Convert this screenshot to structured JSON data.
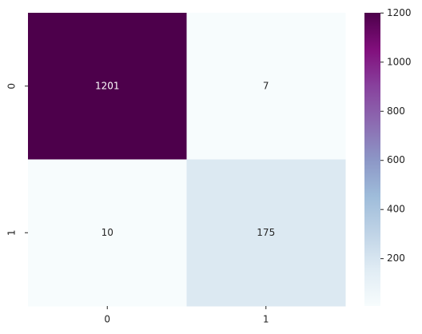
{
  "chart_data": {
    "type": "heatmap",
    "x_categories": [
      "0",
      "1"
    ],
    "y_categories": [
      "0",
      "1"
    ],
    "values": [
      [
        1201,
        7
      ],
      [
        10,
        175
      ]
    ],
    "colorscale": [
      "#f7fcfd",
      "#e0ecf4",
      "#bfd3e6",
      "#9ebcda",
      "#8c96c6",
      "#8c6bb1",
      "#88419d",
      "#810f7c",
      "#4d004b"
    ],
    "clim": [
      7,
      1201
    ],
    "cticks": [
      200,
      400,
      600,
      800,
      1000,
      1200
    ]
  }
}
